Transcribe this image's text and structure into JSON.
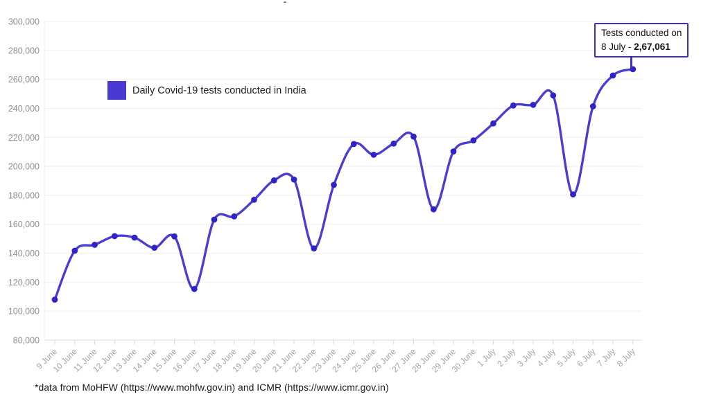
{
  "page": {
    "title_dash": "-"
  },
  "legend": {
    "label": "Daily Covid-19 tests conducted in India"
  },
  "annotation": {
    "line1": "Tests conducted on",
    "line2_prefix": "8 July - ",
    "line2_value": "2,67,061"
  },
  "footer": {
    "text": "*data from MoHFW (https://www.mohfw.gov.in) and ICMR (https://www.icmr.gov.in)"
  },
  "colors": {
    "line": "#4b3cd3",
    "marker": "#2e23c6",
    "legend_swatch": "#4a3ad2",
    "annotation_border": "#3b2ed1",
    "grid": "#efefef",
    "baseline": "#dedede",
    "axis": "#ececec",
    "tick": "#d8d8d8",
    "y_label": "#8f8f8f",
    "x_label": "#9dab9e"
  },
  "chart_data": {
    "type": "line",
    "title": "-",
    "xlabel": "",
    "ylabel": "",
    "grid": "horizontal",
    "legend_position": "top-left-inside",
    "ylim": [
      80000,
      300000
    ],
    "y_tick_step": 20000,
    "categories": [
      "9 June",
      "10 June",
      "11 June",
      "12 June",
      "13 June",
      "14 June",
      "15 June",
      "16 June",
      "17 June",
      "18 June",
      "19 June",
      "20 June",
      "21 June",
      "22 June",
      "23 June",
      "24 June",
      "25 June",
      "26 June",
      "27 June",
      "28 June",
      "29 June",
      "30 June",
      "1 July",
      "2 July",
      "3 July",
      "4 July",
      "5 July",
      "6 July",
      "7 July",
      "8 July"
    ],
    "series": [
      {
        "name": "Daily Covid-19 tests conducted in India",
        "values": [
          108000,
          141700,
          145800,
          151800,
          150800,
          143800,
          151600,
          115300,
          163200,
          165400,
          176900,
          190300,
          190900,
          143300,
          187200,
          215400,
          208000,
          215700,
          220500,
          170300,
          210300,
          217900,
          229600,
          242000,
          242400,
          248900,
          180600,
          241400,
          262700,
          267061
        ]
      }
    ],
    "annotated_point": {
      "category": "8 July",
      "value": 267061
    }
  }
}
